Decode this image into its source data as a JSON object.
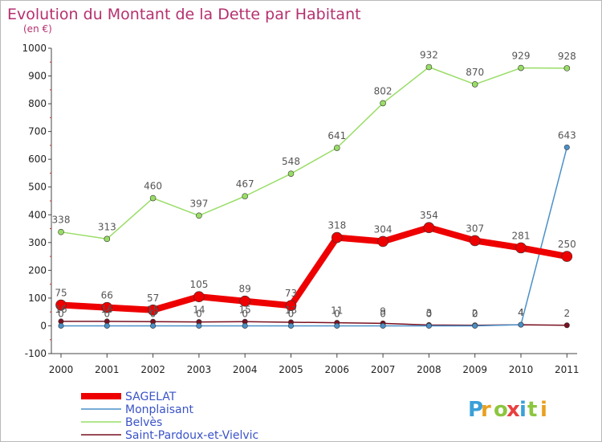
{
  "chart_data": {
    "type": "line",
    "title": "Evolution du Montant de la Dette par Habitant",
    "subtitle": "(en €)",
    "xlabel": "",
    "ylabel": "",
    "x": [
      "2000",
      "2001",
      "2002",
      "2003",
      "2004",
      "2005",
      "2006",
      "2007",
      "2008",
      "2009",
      "2010",
      "2011"
    ],
    "ylim": [
      -100,
      1000
    ],
    "yticks": [
      -100,
      0,
      100,
      200,
      300,
      400,
      500,
      600,
      700,
      800,
      900,
      1000
    ],
    "grid": false,
    "legend_position": "bottom-left",
    "series": [
      {
        "name": "SAGELAT",
        "color": "#ee0000",
        "values": [
          75,
          66,
          57,
          105,
          89,
          73,
          318,
          304,
          354,
          307,
          281,
          250
        ],
        "labels": [
          "75",
          "66",
          "57",
          "105",
          "89",
          "73",
          "318",
          "304",
          "354",
          "307",
          "281",
          "250"
        ]
      },
      {
        "name": "Monplaisant",
        "color": "#4a90c8",
        "values": [
          0,
          0,
          0,
          0,
          0,
          0,
          0,
          0,
          0,
          0,
          4,
          643
        ],
        "labels": [
          "0",
          "0",
          "0",
          "0",
          "0",
          "0",
          "0",
          "0",
          "0",
          "0",
          "4",
          "643"
        ]
      },
      {
        "name": "Belvès",
        "color": "#99dd66",
        "values": [
          338,
          313,
          460,
          397,
          467,
          548,
          641,
          802,
          932,
          870,
          929,
          928
        ],
        "labels": [
          "338",
          "313",
          "460",
          "397",
          "467",
          "548",
          "641",
          "802",
          "932",
          "870",
          "929",
          "928"
        ]
      },
      {
        "name": "Saint-Pardoux-et-Vielvic",
        "color": "#7a1020",
        "values": [
          16,
          16,
          15,
          14,
          15,
          13,
          11,
          9,
          3,
          2,
          4,
          2
        ],
        "labels": [
          "16",
          "16",
          "15",
          "14",
          "15",
          "13",
          "11",
          "9",
          "3",
          "2",
          "4",
          "2"
        ]
      }
    ]
  },
  "brand": {
    "logo_text": "Proxiti"
  }
}
